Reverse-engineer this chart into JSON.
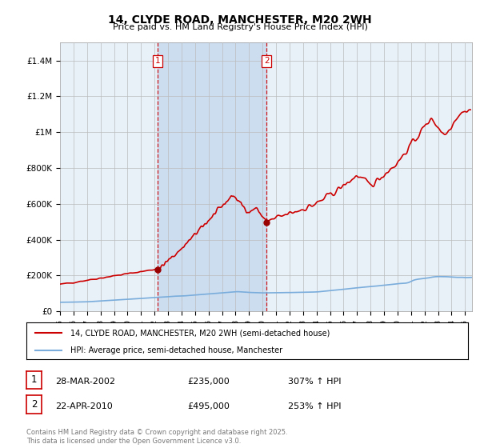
{
  "title": "14, CLYDE ROAD, MANCHESTER, M20 2WH",
  "subtitle": "Price paid vs. HM Land Registry's House Price Index (HPI)",
  "ylabel_ticks": [
    "£0",
    "£200K",
    "£400K",
    "£600K",
    "£800K",
    "£1M",
    "£1.2M",
    "£1.4M"
  ],
  "ytick_vals": [
    0,
    200000,
    400000,
    600000,
    800000,
    1000000,
    1200000,
    1400000
  ],
  "ylim": [
    0,
    1500000
  ],
  "xlim_start": 1995.0,
  "xlim_end": 2025.5,
  "purchase1_x": 2002.24,
  "purchase1_y": 235000,
  "purchase1_label": "1",
  "purchase2_x": 2010.31,
  "purchase2_y": 495000,
  "purchase2_label": "2",
  "legend_line1": "14, CLYDE ROAD, MANCHESTER, M20 2WH (semi-detached house)",
  "legend_line2": "HPI: Average price, semi-detached house, Manchester",
  "table_row1": [
    "1",
    "28-MAR-2002",
    "£235,000",
    "307% ↑ HPI"
  ],
  "table_row2": [
    "2",
    "22-APR-2010",
    "£495,000",
    "253% ↑ HPI"
  ],
  "footer": "Contains HM Land Registry data © Crown copyright and database right 2025.\nThis data is licensed under the Open Government Licence v3.0.",
  "hpi_color": "#7aaddb",
  "price_color": "#cc0000",
  "plot_bg": "#e8f0f8",
  "shade_color": "#ccddf0",
  "vline_color": "#cc0000",
  "grid_color": "#bbbbbb",
  "dot_color": "#990000"
}
